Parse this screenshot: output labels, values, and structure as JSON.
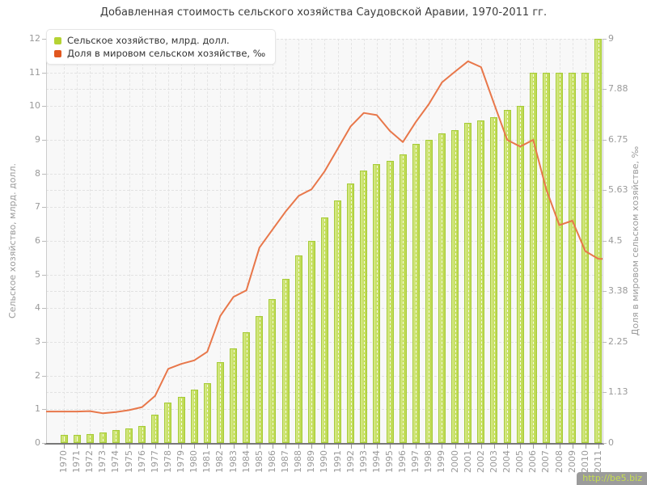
{
  "title": "Добавленная стоимость сельского хозяйства Саудовской Аравии, 1970-2011 гг.",
  "legend": {
    "items": [
      {
        "label": "Сельское хозяйство, млрд. долл.",
        "color": "#b5d334"
      },
      {
        "label": "Доля в мировом сельском хозяйстве, ‰",
        "color": "#e1571f"
      }
    ]
  },
  "watermark": {
    "text": "http://be5.biz"
  },
  "axes": {
    "left": {
      "title": "Сельское хозяйство, млрд. долл.",
      "ticks": [
        "0",
        "1",
        "2",
        "3",
        "4",
        "5",
        "6",
        "7",
        "8",
        "9",
        "10",
        "11",
        "12"
      ],
      "tick_values": [
        0,
        1,
        2,
        3,
        4,
        5,
        6,
        7,
        8,
        9,
        10,
        11,
        12
      ]
    },
    "right": {
      "title": "Доля в мировом сельском хозяйстве, ‰",
      "ticks": [
        "0",
        "1.13",
        "2.25",
        "3.38",
        "4.5",
        "5.63",
        "6.75",
        "7.88",
        "9"
      ],
      "tick_values": [
        0,
        1.13,
        2.25,
        3.38,
        4.5,
        5.63,
        6.75,
        7.88,
        9
      ]
    }
  },
  "chart_data": {
    "type": "bar+line",
    "title": "Добавленная стоимость сельского хозяйства Саудовской Аравии, 1970-2011 гг.",
    "categories": [
      "1970",
      "1971",
      "1972",
      "1973",
      "1974",
      "1975",
      "1976",
      "1977",
      "1978",
      "1979",
      "1980",
      "1981",
      "1982",
      "1983",
      "1984",
      "1985",
      "1986",
      "1987",
      "1988",
      "1989",
      "1990",
      "1991",
      "1992",
      "1993",
      "1994",
      "1995",
      "1996",
      "1997",
      "1998",
      "1999",
      "2000",
      "2001",
      "2002",
      "2003",
      "2004",
      "2005",
      "2006",
      "2007",
      "2008",
      "2009",
      "2010",
      "2011"
    ],
    "series": [
      {
        "name": "Сельское хозяйство, млрд. долл.",
        "type": "bar",
        "axis": "left",
        "color": "#c8e166",
        "values": [
          0.23,
          0.24,
          0.27,
          0.32,
          0.38,
          0.44,
          0.5,
          0.85,
          1.2,
          1.38,
          1.58,
          1.78,
          2.4,
          2.82,
          3.28,
          3.78,
          4.28,
          4.88,
          5.58,
          6.0,
          6.7,
          7.2,
          7.7,
          8.1,
          8.28,
          8.38,
          8.58,
          8.87,
          9.0,
          9.2,
          9.3,
          9.5,
          9.57,
          9.68,
          9.88,
          10.0,
          11.0,
          11.0,
          11.0,
          11.0,
          11.0,
          12.0
        ]
      },
      {
        "name": "Доля в мировом сельском хозяйстве, ‰",
        "type": "line",
        "axis": "right",
        "color": "#e8774a",
        "values": [
          0.7,
          0.7,
          0.71,
          0.66,
          0.69,
          0.73,
          0.8,
          1.05,
          1.65,
          1.76,
          1.84,
          2.03,
          2.83,
          3.25,
          3.4,
          4.35,
          4.75,
          5.15,
          5.5,
          5.65,
          6.05,
          6.55,
          7.05,
          7.35,
          7.3,
          6.95,
          6.7,
          7.15,
          7.55,
          8.03,
          8.27,
          8.5,
          8.37,
          7.55,
          6.75,
          6.6,
          6.75,
          5.65,
          4.85,
          4.95,
          4.27,
          4.1
        ]
      }
    ],
    "ylabel_left": "Сельское хозяйство, млрд. долл.",
    "ylabel_right": "Доля в мировом сельском хозяйстве, ‰",
    "ylim_left": [
      0,
      12
    ],
    "ylim_right": [
      0,
      9
    ],
    "grid": "on",
    "legend_position": "top-left"
  }
}
